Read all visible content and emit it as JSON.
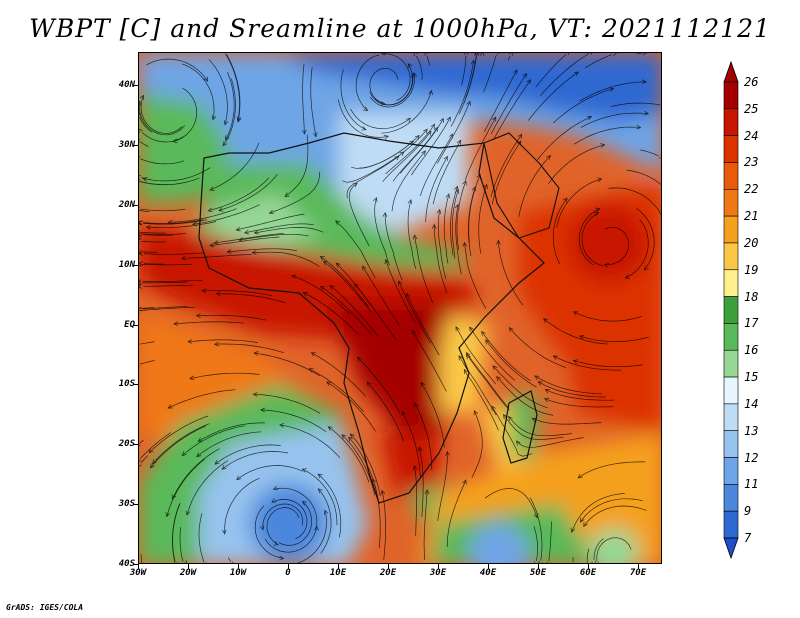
{
  "title": "WBPT [C] and Sreamline at 1000hPa, VT: 2021112121",
  "credit": "GrADS: IGES/COLA",
  "lat_labels": [
    "40N",
    "30N",
    "20N",
    "10N",
    "EQ",
    "10S",
    "20S",
    "30S",
    "40S"
  ],
  "lon_labels": [
    "30W",
    "20W",
    "10W",
    "0",
    "10E",
    "20E",
    "30E",
    "40E",
    "50E",
    "60E",
    "70E"
  ],
  "colorbar": {
    "labels": [
      "26",
      "25",
      "24",
      "23",
      "22",
      "21",
      "20",
      "19",
      "18",
      "17",
      "16",
      "15",
      "14",
      "13",
      "12",
      "11",
      "9",
      "7"
    ],
    "colors": [
      "#a50000",
      "#c81400",
      "#dc3200",
      "#ea5a0c",
      "#f07814",
      "#f5a01e",
      "#fac846",
      "#fff08c",
      "#3ca03c",
      "#5ab95a",
      "#96d796",
      "#e6f5ff",
      "#bedcf5",
      "#96c3ee",
      "#6ea5e6",
      "#4b87dc",
      "#2d69d2"
    ],
    "top_color": "#a50000",
    "bottom_color": "#1e4fc8"
  }
}
